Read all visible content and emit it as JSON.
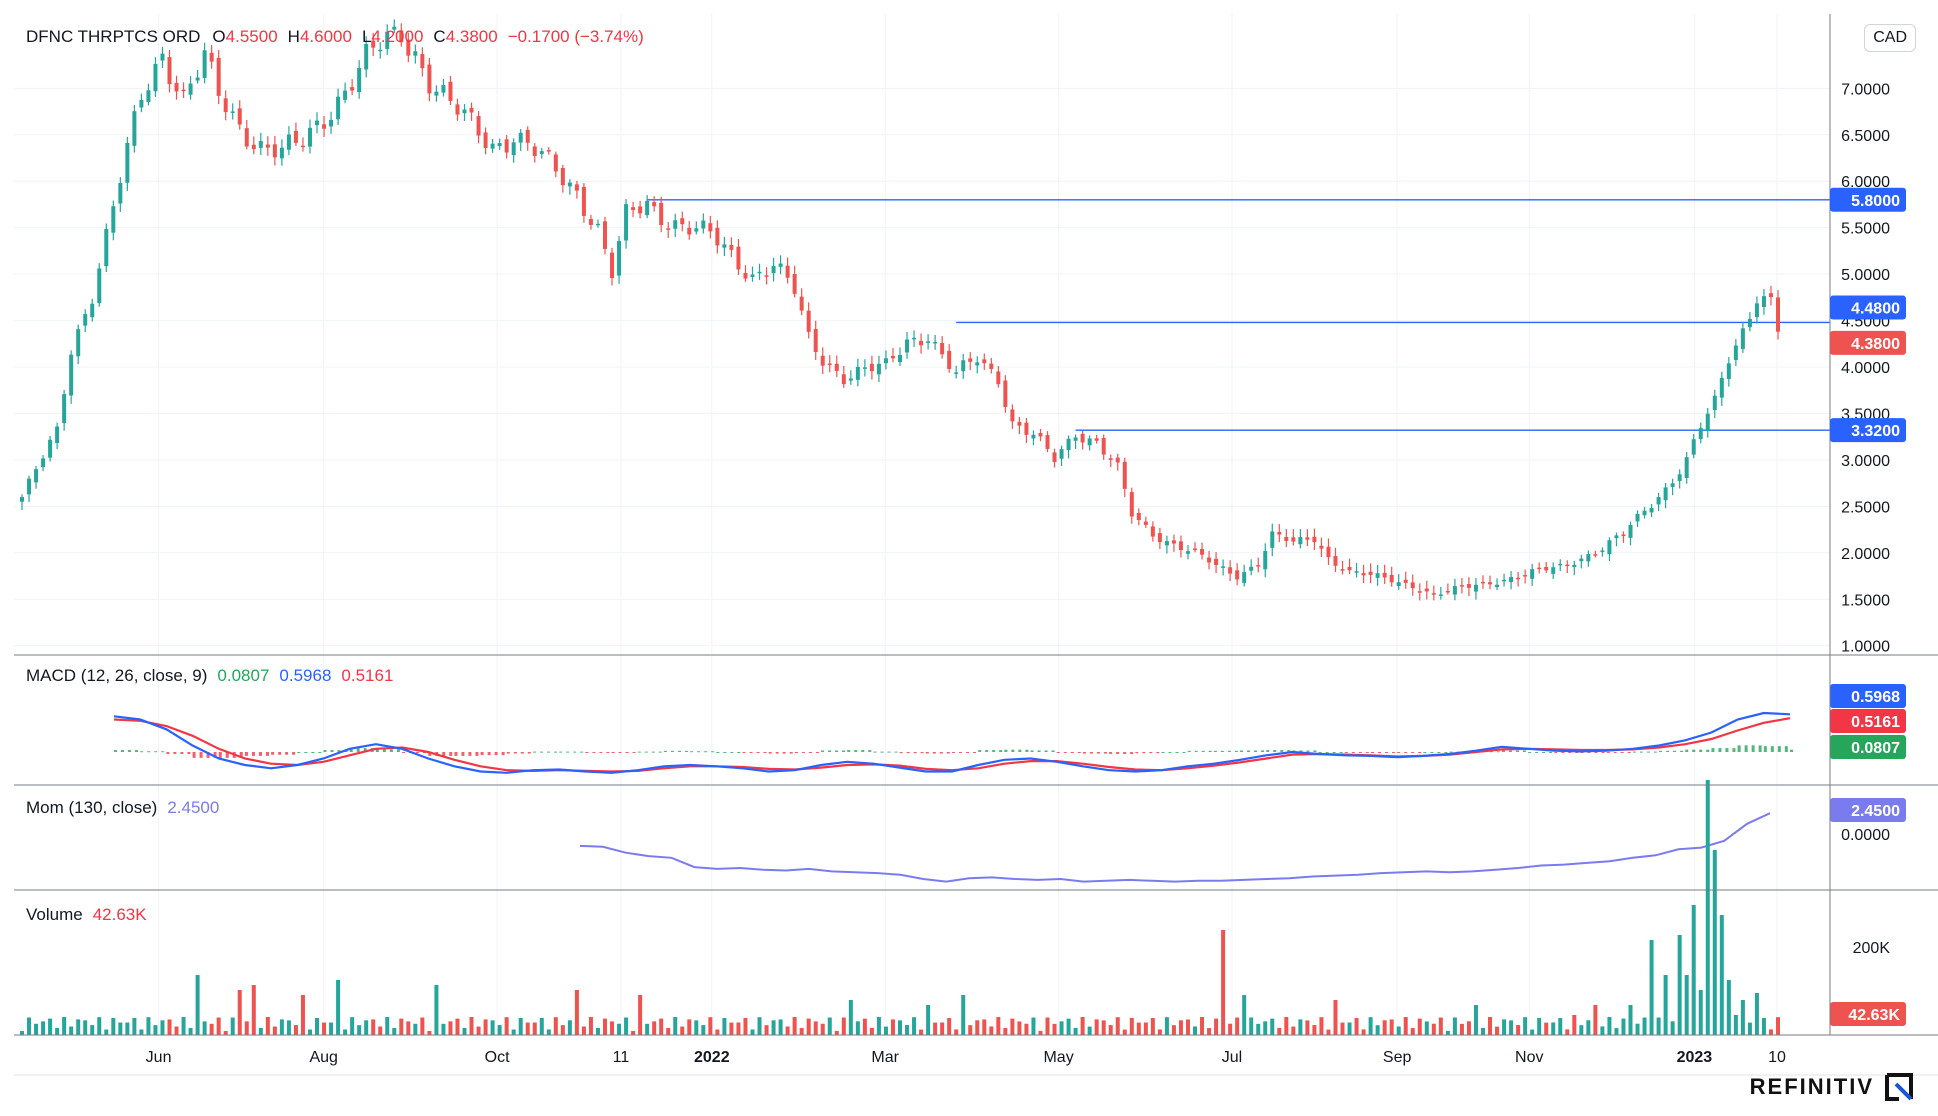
{
  "header": {
    "symbol": "DFNC THRPTCS ORD",
    "o_label": "O",
    "o_value": "4.5500",
    "h_label": "H",
    "h_value": "4.6000",
    "l_label": "L",
    "l_value": "4.2000",
    "c_label": "C",
    "c_value": "4.3800",
    "change": "−0.1700 (−3.74%)",
    "currency": "CAD"
  },
  "colors": {
    "up": "#26a69a",
    "down": "#ef5350",
    "level_line": "#2962ff",
    "macd": "#2962ff",
    "signal": "#f23645",
    "mom": "#7b7bf0",
    "hist_up": "#26a65b"
  },
  "price_labels": {
    "level1": "5.8000",
    "level2": "4.4800",
    "last": "4.3800",
    "level3": "3.3200"
  },
  "macd_legend": {
    "name": "MACD (12, 26, close, 9)",
    "hist": "0.0807",
    "macd": "0.5968",
    "signal": "0.5161"
  },
  "mom_legend": {
    "name": "Mom (130, close)",
    "value": "2.4500",
    "axis_zero": "0.0000"
  },
  "volume_legend": {
    "name": "Volume",
    "value": "42.63K",
    "axis_tick": "200K"
  },
  "x_axis_labels": [
    "Jun",
    "Aug",
    "Oct",
    "11",
    "2022",
    "Mar",
    "May",
    "Jul",
    "Sep",
    "Nov",
    "2023",
    "10"
  ],
  "brand": "REFINITIV",
  "chart_data": [
    {
      "type": "candlestick",
      "title": "DFNC THRPTCS ORD",
      "y_axis_ticks": [
        "7.0000",
        "6.5000",
        "6.0000",
        "5.5000",
        "5.0000",
        "4.5000",
        "4.0000",
        "3.5000",
        "3.0000",
        "2.5000",
        "2.0000",
        "1.5000",
        "1.0000"
      ],
      "ylim": [
        0.9,
        7.8
      ],
      "horizontal_levels": [
        5.8,
        4.48,
        3.32
      ],
      "last_close": 4.38,
      "anchors": [
        [
          0,
          2.6
        ],
        [
          5,
          3.3
        ],
        [
          7,
          4.2
        ],
        [
          10,
          4.8
        ],
        [
          14,
          6.0
        ],
        [
          17,
          6.9
        ],
        [
          20,
          7.4
        ],
        [
          23,
          6.9
        ],
        [
          26,
          7.3
        ],
        [
          28,
          6.9
        ],
        [
          31,
          6.6
        ],
        [
          34,
          6.4
        ],
        [
          37,
          6.3
        ],
        [
          40,
          6.4
        ],
        [
          43,
          6.7
        ],
        [
          46,
          7.0
        ],
        [
          49,
          7.3
        ],
        [
          52,
          7.5
        ],
        [
          54,
          7.6
        ],
        [
          56,
          7.4
        ],
        [
          58,
          7.1
        ],
        [
          61,
          6.8
        ],
        [
          64,
          6.6
        ],
        [
          67,
          6.4
        ],
        [
          70,
          6.5
        ],
        [
          73,
          6.3
        ],
        [
          76,
          6.1
        ],
        [
          79,
          5.9
        ],
        [
          82,
          5.5
        ],
        [
          84,
          5.0
        ],
        [
          86,
          5.6
        ],
        [
          89,
          5.75
        ],
        [
          92,
          5.6
        ],
        [
          95,
          5.5
        ],
        [
          98,
          5.4
        ],
        [
          101,
          5.2
        ],
        [
          104,
          5.0
        ],
        [
          107,
          5.1
        ],
        [
          110,
          4.8
        ],
        [
          112,
          4.3
        ],
        [
          114,
          4.1
        ],
        [
          117,
          3.9
        ],
        [
          120,
          3.95
        ],
        [
          123,
          4.0
        ],
        [
          126,
          4.3
        ],
        [
          129,
          4.35
        ],
        [
          131,
          4.1
        ],
        [
          133,
          3.9
        ],
        [
          136,
          4.1
        ],
        [
          139,
          3.9
        ],
        [
          141,
          3.4
        ],
        [
          144,
          3.25
        ],
        [
          147,
          3.0
        ],
        [
          150,
          3.3
        ],
        [
          153,
          3.2
        ],
        [
          156,
          2.9
        ],
        [
          158,
          2.4
        ],
        [
          161,
          2.2
        ],
        [
          164,
          2.1
        ],
        [
          167,
          2.0
        ],
        [
          170,
          1.85
        ],
        [
          173,
          1.75
        ],
        [
          176,
          1.9
        ],
        [
          178,
          2.2
        ],
        [
          181,
          2.1
        ],
        [
          184,
          2.15
        ],
        [
          186,
          1.95
        ],
        [
          189,
          1.8
        ],
        [
          192,
          1.75
        ],
        [
          195,
          1.7
        ],
        [
          198,
          1.65
        ],
        [
          201,
          1.55
        ],
        [
          204,
          1.6
        ],
        [
          207,
          1.65
        ],
        [
          210,
          1.7
        ],
        [
          213,
          1.75
        ],
        [
          216,
          1.8
        ],
        [
          219,
          1.85
        ],
        [
          222,
          1.95
        ],
        [
          225,
          2.05
        ],
        [
          228,
          2.2
        ],
        [
          231,
          2.45
        ],
        [
          234,
          2.7
        ],
        [
          237,
          3.0
        ],
        [
          239,
          3.35
        ],
        [
          241,
          3.6
        ],
        [
          243,
          4.1
        ],
        [
          245,
          4.4
        ],
        [
          247,
          4.8
        ],
        [
          249,
          4.7
        ],
        [
          250,
          4.38
        ]
      ]
    },
    {
      "type": "line",
      "title": "MACD (12, 26, close, 9)",
      "series": [
        {
          "name": "MACD",
          "values": [
            0.55,
            0.5,
            0.35,
            0.1,
            -0.1,
            -0.2,
            -0.25,
            -0.2,
            -0.1,
            0.05,
            0.12,
            0.05,
            -0.1,
            -0.22,
            -0.3,
            -0.32,
            -0.28,
            -0.27,
            -0.3,
            -0.32,
            -0.28,
            -0.22,
            -0.2,
            -0.22,
            -0.25,
            -0.3,
            -0.28,
            -0.2,
            -0.15,
            -0.18,
            -0.24,
            -0.3,
            -0.3,
            -0.2,
            -0.12,
            -0.1,
            -0.15,
            -0.22,
            -0.28,
            -0.3,
            -0.28,
            -0.22,
            -0.18,
            -0.12,
            -0.05,
            0.0,
            -0.03,
            -0.05,
            -0.06,
            -0.08,
            -0.06,
            -0.03,
            0.02,
            0.08,
            0.05,
            0.02,
            0.01,
            0.02,
            0.05,
            0.1,
            0.18,
            0.3,
            0.5,
            0.6,
            0.58
          ]
        },
        {
          "name": "Signal",
          "values": [
            0.5,
            0.48,
            0.4,
            0.25,
            0.05,
            -0.1,
            -0.18,
            -0.2,
            -0.15,
            -0.05,
            0.05,
            0.07,
            0.0,
            -0.12,
            -0.22,
            -0.28,
            -0.29,
            -0.28,
            -0.29,
            -0.3,
            -0.29,
            -0.25,
            -0.22,
            -0.22,
            -0.23,
            -0.26,
            -0.27,
            -0.24,
            -0.2,
            -0.19,
            -0.21,
            -0.26,
            -0.28,
            -0.25,
            -0.18,
            -0.14,
            -0.14,
            -0.18,
            -0.23,
            -0.27,
            -0.28,
            -0.25,
            -0.21,
            -0.16,
            -0.1,
            -0.04,
            -0.03,
            -0.04,
            -0.05,
            -0.07,
            -0.06,
            -0.04,
            0.0,
            0.04,
            0.05,
            0.04,
            0.03,
            0.03,
            0.04,
            0.07,
            0.12,
            0.2,
            0.33,
            0.45,
            0.52
          ]
        }
      ]
    },
    {
      "type": "line",
      "title": "Mom (130, close)",
      "series": [
        {
          "name": "Mom",
          "values": [
            -1.4,
            -1.5,
            -2.2,
            -2.6,
            -2.8,
            -3.9,
            -4.1,
            -4.0,
            -4.2,
            -4.3,
            -4.1,
            -4.4,
            -4.5,
            -4.6,
            -4.8,
            -5.3,
            -5.6,
            -5.2,
            -5.1,
            -5.3,
            -5.4,
            -5.3,
            -5.6,
            -5.5,
            -5.4,
            -5.5,
            -5.6,
            -5.5,
            -5.5,
            -5.4,
            -5.3,
            -5.2,
            -5.0,
            -4.9,
            -4.8,
            -4.6,
            -4.5,
            -4.4,
            -4.5,
            -4.4,
            -4.2,
            -4.0,
            -3.7,
            -3.6,
            -3.4,
            -3.2,
            -2.8,
            -2.5,
            -1.8,
            -1.6,
            -0.8,
            1.2,
            2.45
          ]
        }
      ]
    },
    {
      "type": "bar",
      "title": "Volume",
      "y_axis_ticks": [
        "200K"
      ],
      "last_value": "42.63K",
      "spikes": [
        [
          25,
          60
        ],
        [
          31,
          45
        ],
        [
          33,
          50
        ],
        [
          40,
          40
        ],
        [
          45,
          55
        ],
        [
          59,
          50
        ],
        [
          79,
          45
        ],
        [
          88,
          40
        ],
        [
          118,
          35
        ],
        [
          129,
          30
        ],
        [
          134,
          40
        ],
        [
          171,
          105
        ],
        [
          174,
          40
        ],
        [
          187,
          35
        ],
        [
          207,
          30
        ],
        [
          221,
          20
        ],
        [
          224,
          30
        ],
        [
          229,
          30
        ],
        [
          232,
          95
        ],
        [
          234,
          60
        ],
        [
          236,
          100
        ],
        [
          237,
          60
        ],
        [
          238,
          130
        ],
        [
          239,
          45
        ],
        [
          240,
          255
        ],
        [
          241,
          185
        ],
        [
          242,
          120
        ],
        [
          243,
          55
        ],
        [
          244,
          20
        ],
        [
          245,
          35
        ],
        [
          247,
          42
        ]
      ]
    }
  ]
}
